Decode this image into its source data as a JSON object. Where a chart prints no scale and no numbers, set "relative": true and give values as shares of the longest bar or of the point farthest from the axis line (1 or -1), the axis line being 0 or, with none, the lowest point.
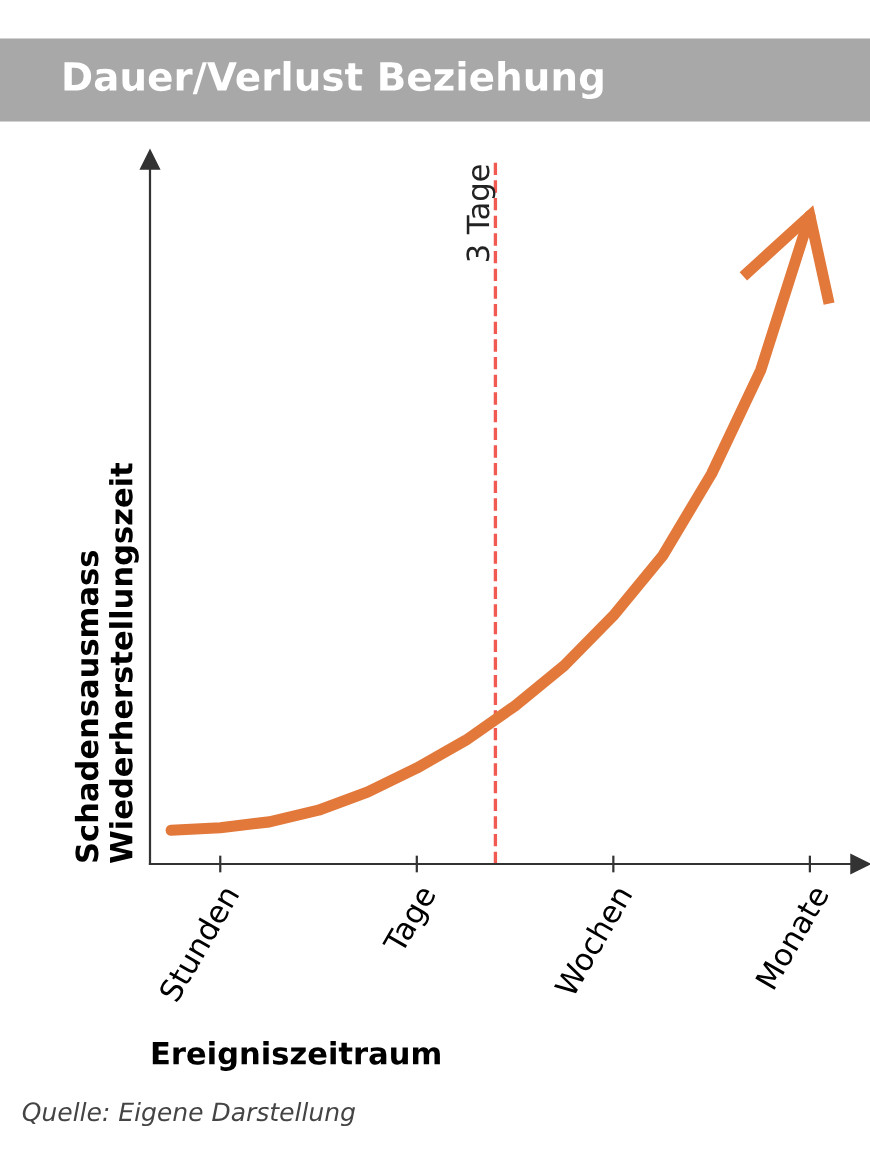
{
  "chart_data": {
    "type": "line",
    "title": "Dauer/Verlust Beziehung",
    "xlabel": "Ereigniszeitraum",
    "ylabel": "Schadensausmass\nWiederherstellungszeit",
    "relative": true,
    "categories": [
      null,
      "Stunden",
      null,
      null,
      null,
      "Tage",
      null,
      null,
      null,
      "Wochen",
      null,
      null,
      null,
      "Monate"
    ],
    "series": [
      {
        "color": "#e2783a",
        "values": [
          0.052,
          0.056,
          0.065,
          0.083,
          0.111,
          0.148,
          0.191,
          0.244,
          0.306,
          0.383,
          0.475,
          0.602,
          0.762,
          1.0
        ]
      }
    ],
    "annotations": [
      "3 Tage",
      "Quelle: Eigene Darstellung"
    ],
    "grid": false,
    "legend": false
  }
}
